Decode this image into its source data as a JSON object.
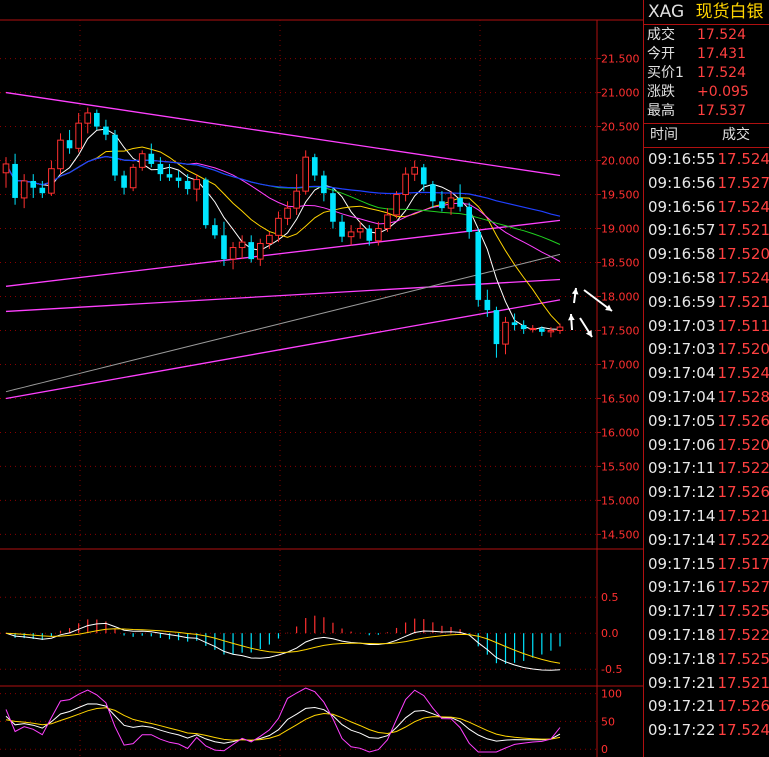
{
  "header": {
    "symbol": "XAG",
    "name": "现货白银"
  },
  "quote": [
    {
      "label": "成交",
      "value": "17.524"
    },
    {
      "label": "今开",
      "value": "17.431"
    },
    {
      "label": "买价1",
      "value": "17.524"
    },
    {
      "label": "涨跌",
      "value": "+0.095"
    },
    {
      "label": "最高",
      "value": "17.537"
    }
  ],
  "trades_header": {
    "time": "时间",
    "price": "成交"
  },
  "trades": [
    {
      "time": "09:16:55",
      "price": "17.524"
    },
    {
      "time": "09:16:56",
      "price": "17.527"
    },
    {
      "time": "09:16:56",
      "price": "17.524"
    },
    {
      "time": "09:16:57",
      "price": "17.521"
    },
    {
      "time": "09:16:58",
      "price": "17.520"
    },
    {
      "time": "09:16:58",
      "price": "17.524"
    },
    {
      "time": "09:16:59",
      "price": "17.521"
    },
    {
      "time": "09:17:03",
      "price": "17.511"
    },
    {
      "time": "09:17:03",
      "price": "17.520"
    },
    {
      "time": "09:17:04",
      "price": "17.524"
    },
    {
      "time": "09:17:04",
      "price": "17.528"
    },
    {
      "time": "09:17:05",
      "price": "17.526"
    },
    {
      "time": "09:17:06",
      "price": "17.520"
    },
    {
      "time": "09:17:11",
      "price": "17.522"
    },
    {
      "time": "09:17:12",
      "price": "17.526"
    },
    {
      "time": "09:17:14",
      "price": "17.521"
    },
    {
      "time": "09:17:14",
      "price": "17.522"
    },
    {
      "time": "09:17:15",
      "price": "17.517"
    },
    {
      "time": "09:17:16",
      "price": "17.527"
    },
    {
      "time": "09:17:17",
      "price": "17.525"
    },
    {
      "time": "09:17:18",
      "price": "17.522"
    },
    {
      "time": "09:17:18",
      "price": "17.525"
    },
    {
      "time": "09:17:21",
      "price": "17.521"
    },
    {
      "time": "09:17:21",
      "price": "17.526"
    },
    {
      "time": "09:17:22",
      "price": "17.524"
    }
  ],
  "colors": {
    "up": "#ff3030",
    "down": "#00e5ff",
    "grid": "#8a0000",
    "axis_text": "#ff3030"
  },
  "chart_data": {
    "type": "candlestick",
    "price_axis_ticks": [
      "21.500",
      "21.000",
      "20.500",
      "20.000",
      "19.500",
      "19.000",
      "18.500",
      "18.000",
      "17.500",
      "17.000",
      "16.500",
      "16.000",
      "15.500",
      "15.000",
      "14.500"
    ],
    "ylim": [
      14.3,
      21.95
    ],
    "macd_axis_ticks": [
      "0.5",
      "0.0",
      "-0.5"
    ],
    "macd_ylim": [
      -0.65,
      0.85
    ],
    "kdj_axis_ticks": [
      "100",
      "50",
      "0"
    ],
    "kdj_ylim": [
      -5,
      110
    ],
    "candles": [
      {
        "o": 19.82,
        "h": 20.05,
        "l": 19.6,
        "c": 19.95
      },
      {
        "o": 19.95,
        "h": 20.1,
        "l": 19.35,
        "c": 19.45
      },
      {
        "o": 19.45,
        "h": 19.8,
        "l": 19.3,
        "c": 19.7
      },
      {
        "o": 19.7,
        "h": 19.8,
        "l": 19.45,
        "c": 19.6
      },
      {
        "o": 19.6,
        "h": 19.7,
        "l": 19.45,
        "c": 19.52
      },
      {
        "o": 19.52,
        "h": 20.0,
        "l": 19.48,
        "c": 19.88
      },
      {
        "o": 19.88,
        "h": 20.4,
        "l": 19.8,
        "c": 20.3
      },
      {
        "o": 20.3,
        "h": 20.45,
        "l": 20.1,
        "c": 20.18
      },
      {
        "o": 20.18,
        "h": 20.7,
        "l": 20.12,
        "c": 20.55
      },
      {
        "o": 20.55,
        "h": 20.78,
        "l": 20.4,
        "c": 20.7
      },
      {
        "o": 20.7,
        "h": 20.75,
        "l": 20.45,
        "c": 20.5
      },
      {
        "o": 20.5,
        "h": 20.6,
        "l": 20.3,
        "c": 20.38
      },
      {
        "o": 20.38,
        "h": 20.45,
        "l": 19.7,
        "c": 19.78
      },
      {
        "o": 19.78,
        "h": 19.85,
        "l": 19.5,
        "c": 19.6
      },
      {
        "o": 19.6,
        "h": 19.95,
        "l": 19.55,
        "c": 19.9
      },
      {
        "o": 19.9,
        "h": 20.15,
        "l": 19.85,
        "c": 20.1
      },
      {
        "o": 20.1,
        "h": 20.25,
        "l": 19.9,
        "c": 19.95
      },
      {
        "o": 19.95,
        "h": 20.05,
        "l": 19.7,
        "c": 19.8
      },
      {
        "o": 19.8,
        "h": 19.95,
        "l": 19.7,
        "c": 19.75
      },
      {
        "o": 19.75,
        "h": 19.85,
        "l": 19.6,
        "c": 19.7
      },
      {
        "o": 19.7,
        "h": 19.8,
        "l": 19.5,
        "c": 19.58
      },
      {
        "o": 19.58,
        "h": 19.8,
        "l": 19.4,
        "c": 19.72
      },
      {
        "o": 19.72,
        "h": 19.75,
        "l": 19.0,
        "c": 19.05
      },
      {
        "o": 19.05,
        "h": 19.15,
        "l": 18.85,
        "c": 18.9
      },
      {
        "o": 18.9,
        "h": 19.1,
        "l": 18.45,
        "c": 18.55
      },
      {
        "o": 18.55,
        "h": 18.8,
        "l": 18.4,
        "c": 18.72
      },
      {
        "o": 18.72,
        "h": 18.9,
        "l": 18.55,
        "c": 18.8
      },
      {
        "o": 18.8,
        "h": 18.9,
        "l": 18.5,
        "c": 18.55
      },
      {
        "o": 18.55,
        "h": 18.85,
        "l": 18.45,
        "c": 18.78
      },
      {
        "o": 18.78,
        "h": 18.95,
        "l": 18.7,
        "c": 18.9
      },
      {
        "o": 18.9,
        "h": 19.25,
        "l": 18.8,
        "c": 19.15
      },
      {
        "o": 19.15,
        "h": 19.4,
        "l": 19.05,
        "c": 19.3
      },
      {
        "o": 19.3,
        "h": 19.8,
        "l": 19.2,
        "c": 19.55
      },
      {
        "o": 19.55,
        "h": 20.15,
        "l": 19.5,
        "c": 20.05
      },
      {
        "o": 20.05,
        "h": 20.1,
        "l": 19.7,
        "c": 19.78
      },
      {
        "o": 19.78,
        "h": 19.85,
        "l": 19.4,
        "c": 19.52
      },
      {
        "o": 19.52,
        "h": 19.6,
        "l": 19.0,
        "c": 19.1
      },
      {
        "o": 19.1,
        "h": 19.2,
        "l": 18.8,
        "c": 18.88
      },
      {
        "o": 18.88,
        "h": 19.05,
        "l": 18.75,
        "c": 18.95
      },
      {
        "o": 18.95,
        "h": 19.1,
        "l": 18.85,
        "c": 19.0
      },
      {
        "o": 19.0,
        "h": 19.05,
        "l": 18.75,
        "c": 18.82
      },
      {
        "o": 18.82,
        "h": 19.1,
        "l": 18.75,
        "c": 19.0
      },
      {
        "o": 19.0,
        "h": 19.3,
        "l": 18.95,
        "c": 19.2
      },
      {
        "o": 19.2,
        "h": 19.55,
        "l": 19.15,
        "c": 19.5
      },
      {
        "o": 19.5,
        "h": 19.9,
        "l": 19.4,
        "c": 19.8
      },
      {
        "o": 19.8,
        "h": 20.0,
        "l": 19.7,
        "c": 19.9
      },
      {
        "o": 19.9,
        "h": 19.95,
        "l": 19.55,
        "c": 19.65
      },
      {
        "o": 19.65,
        "h": 19.7,
        "l": 19.3,
        "c": 19.4
      },
      {
        "o": 19.4,
        "h": 19.55,
        "l": 19.25,
        "c": 19.3
      },
      {
        "o": 19.3,
        "h": 19.55,
        "l": 19.2,
        "c": 19.45
      },
      {
        "o": 19.45,
        "h": 19.65,
        "l": 19.25,
        "c": 19.32
      },
      {
        "o": 19.32,
        "h": 19.38,
        "l": 18.85,
        "c": 18.95
      },
      {
        "o": 18.95,
        "h": 19.0,
        "l": 17.85,
        "c": 17.95
      },
      {
        "o": 17.95,
        "h": 18.1,
        "l": 17.7,
        "c": 17.8
      },
      {
        "o": 17.8,
        "h": 17.85,
        "l": 17.1,
        "c": 17.3
      },
      {
        "o": 17.3,
        "h": 17.7,
        "l": 17.15,
        "c": 17.62
      },
      {
        "o": 17.62,
        "h": 17.75,
        "l": 17.5,
        "c": 17.58
      },
      {
        "o": 17.58,
        "h": 17.65,
        "l": 17.45,
        "c": 17.52
      },
      {
        "o": 17.52,
        "h": 17.58,
        "l": 17.47,
        "c": 17.53
      },
      {
        "o": 17.53,
        "h": 17.56,
        "l": 17.42,
        "c": 17.48
      },
      {
        "o": 17.48,
        "h": 17.55,
        "l": 17.4,
        "c": 17.5
      },
      {
        "o": 17.5,
        "h": 17.6,
        "l": 17.45,
        "c": 17.55
      }
    ],
    "trendlines": [
      {
        "p1": [
          0,
          21.0
        ],
        "p2": [
          61,
          19.78
        ],
        "color": "#ff40ff"
      },
      {
        "p1": [
          0,
          18.15
        ],
        "p2": [
          61,
          19.12
        ],
        "color": "#ff40ff"
      },
      {
        "p1": [
          0,
          17.78
        ],
        "p2": [
          61,
          18.25
        ],
        "color": "#ff40ff"
      },
      {
        "p1": [
          0,
          16.5
        ],
        "p2": [
          61,
          17.95
        ],
        "color": "#ff40ff"
      }
    ]
  }
}
